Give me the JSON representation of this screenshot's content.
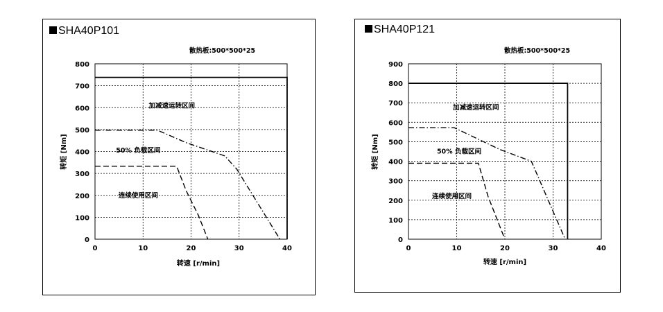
{
  "chart_data": [
    {
      "type": "line",
      "title": "SHA40P101",
      "heatsink_label": "散热板:500*500*25",
      "xlabel": "转速 [r/min]",
      "ylabel": "转矩 [Nm]",
      "xlim": [
        0,
        40
      ],
      "ylim": [
        0,
        800
      ],
      "xticks": [
        0,
        10,
        20,
        30,
        40
      ],
      "yticks": [
        0,
        100,
        200,
        300,
        400,
        500,
        600,
        700,
        800
      ],
      "grid": true,
      "series": [
        {
          "style": "solid",
          "x": [
            0,
            40,
            40
          ],
          "y": [
            738,
            738,
            0
          ]
        },
        {
          "style": "dashdot",
          "x": [
            0,
            13,
            19,
            27,
            29.5,
            38.5
          ],
          "y": [
            497,
            497,
            440,
            380,
            320,
            0
          ]
        },
        {
          "style": "dashed",
          "x": [
            0,
            17,
            19,
            21.5,
            23.5
          ],
          "y": [
            333,
            333,
            220,
            110,
            0
          ]
        }
      ],
      "annotations": [
        {
          "text": "加减速运转区间",
          "x": 16,
          "y": 600
        },
        {
          "text": "50% 负载区间",
          "x": 9,
          "y": 395
        },
        {
          "text": "连续使用区间",
          "x": 9,
          "y": 190
        }
      ]
    },
    {
      "type": "line",
      "title": "SHA40P121",
      "heatsink_label": "散热板:500*500*25",
      "xlabel": "转速 [r/min]",
      "ylabel": "转矩 [Nm]",
      "xlim": [
        0,
        40
      ],
      "ylim": [
        0,
        900
      ],
      "xticks": [
        0,
        10,
        20,
        30,
        40
      ],
      "yticks": [
        0,
        100,
        200,
        300,
        400,
        500,
        600,
        700,
        800,
        900
      ],
      "grid": true,
      "series": [
        {
          "style": "solid",
          "x": [
            0,
            33,
            33
          ],
          "y": [
            800,
            800,
            0
          ]
        },
        {
          "style": "dashdot",
          "x": [
            0,
            9.5,
            19,
            25.5,
            32.5
          ],
          "y": [
            572,
            572,
            460,
            400,
            0
          ]
        },
        {
          "style": "dashed",
          "x": [
            0,
            14.5,
            16.5,
            20
          ],
          "y": [
            390,
            390,
            220,
            0
          ]
        }
      ],
      "annotations": [
        {
          "text": "加减速运转区间",
          "x": 14,
          "y": 665
        },
        {
          "text": "50% 负载区间",
          "x": 10.5,
          "y": 440
        },
        {
          "text": "连续使用区间",
          "x": 9,
          "y": 210
        }
      ]
    }
  ]
}
